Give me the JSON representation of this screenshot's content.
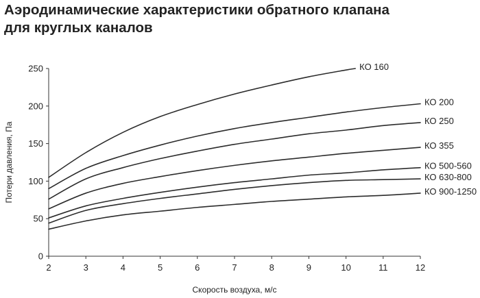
{
  "chart_data": {
    "type": "line",
    "title_lines": [
      "Аэродинамические характеристики обратного клапана",
      "для круглых каналов"
    ],
    "xlabel": "Скорость воздуха, м/с",
    "ylabel": "Потери давления, Па",
    "xlim": [
      2,
      12
    ],
    "ylim": [
      0,
      250
    ],
    "x_ticks": [
      "2",
      "3",
      "4",
      "5",
      "6",
      "7",
      "8",
      "9",
      "10",
      "11",
      "12"
    ],
    "y_ticks": [
      "0",
      "50",
      "100",
      "150",
      "200",
      "250"
    ],
    "grid": false,
    "series": [
      {
        "name": "КО 160",
        "x": [
          2,
          3,
          4,
          5,
          6,
          7,
          8,
          9,
          10,
          10.25
        ],
        "y": [
          105,
          138,
          165,
          186,
          202,
          216,
          228,
          239,
          248,
          250
        ]
      },
      {
        "name": "КО 200",
        "x": [
          2,
          3,
          4,
          5,
          6,
          7,
          8,
          9,
          10,
          11,
          12
        ],
        "y": [
          90,
          117,
          134,
          148,
          160,
          170,
          178,
          185,
          192,
          198,
          203
        ]
      },
      {
        "name": "КО 250",
        "x": [
          2,
          3,
          4,
          5,
          6,
          7,
          8,
          9,
          10,
          11,
          12
        ],
        "y": [
          76,
          103,
          118,
          130,
          140,
          149,
          156,
          163,
          168,
          174,
          178
        ]
      },
      {
        "name": "КО 355",
        "x": [
          2,
          3,
          4,
          5,
          6,
          7,
          8,
          9,
          10,
          11,
          12
        ],
        "y": [
          63,
          84,
          97,
          106,
          114,
          121,
          127,
          132,
          137,
          141,
          145
        ]
      },
      {
        "name": "КО 500-560",
        "x": [
          2,
          3,
          4,
          5,
          6,
          7,
          8,
          9,
          10,
          11,
          12
        ],
        "y": [
          51,
          67,
          77,
          85,
          92,
          98,
          103,
          108,
          111,
          115,
          118
        ]
      },
      {
        "name": "КО 630-800",
        "x": [
          2,
          3,
          4,
          5,
          6,
          7,
          8,
          9,
          10,
          11,
          12
        ],
        "y": [
          44,
          61,
          70,
          77,
          83,
          89,
          94,
          98,
          101,
          102,
          103
        ]
      },
      {
        "name": "КО 900-1250",
        "x": [
          2,
          3,
          4,
          5,
          6,
          7,
          8,
          9,
          10,
          11,
          12
        ],
        "y": [
          36,
          47,
          55,
          60,
          65,
          69,
          73,
          76,
          79,
          81,
          84
        ]
      }
    ]
  }
}
